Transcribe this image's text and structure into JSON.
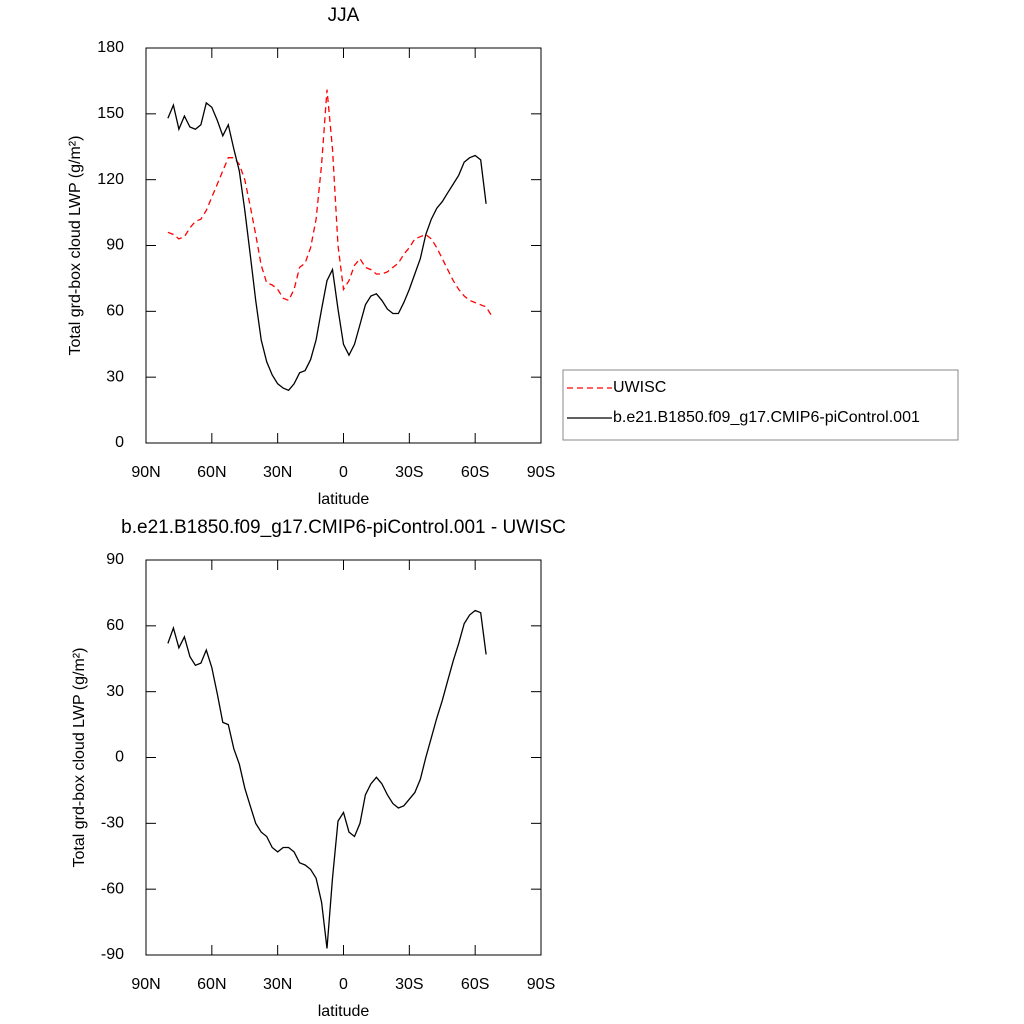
{
  "chart_data": [
    {
      "type": "line",
      "title": "JJA",
      "xlabel": "latitude",
      "ylabel": "Total grd-box cloud LWP (g/m²)",
      "x": [
        80,
        77.5,
        75,
        72.5,
        70,
        67.5,
        65,
        62.5,
        60,
        57.5,
        55,
        52.5,
        50,
        47.5,
        45,
        42.5,
        40,
        37.5,
        35,
        32.5,
        30,
        27.5,
        25,
        22.5,
        20,
        17.5,
        15,
        12.5,
        10,
        7.5,
        5,
        2.5,
        0,
        -2.5,
        -5,
        -7.5,
        -10,
        -12.5,
        -15,
        -17.5,
        -20,
        -22.5,
        -25,
        -27.5,
        -30,
        -32.5,
        -35,
        -37.5,
        -40,
        -42.5,
        -45,
        -47.5,
        -50,
        -52.5,
        -55,
        -57.5,
        -60,
        -62.5,
        -65,
        -67.5
      ],
      "xlim": [
        90,
        -90
      ],
      "xticks": [
        {
          "value": 90,
          "label": "90N"
        },
        {
          "value": 60,
          "label": "60N"
        },
        {
          "value": 30,
          "label": "30N"
        },
        0,
        {
          "value": -30,
          "label": "30S"
        },
        {
          "value": -60,
          "label": "60S"
        },
        {
          "value": -90,
          "label": "90S"
        }
      ],
      "ylim": [
        0,
        180
      ],
      "yticks": [
        0,
        30,
        60,
        90,
        120,
        150,
        180
      ],
      "legend": "right",
      "series": [
        {
          "name": "UWISC",
          "color": "#ff0000",
          "line_style": "dashed",
          "values": [
            96,
            95,
            93,
            94,
            98,
            101,
            102,
            106,
            112,
            118,
            124,
            130,
            130,
            127,
            120,
            108,
            95,
            81,
            73,
            72,
            70,
            66,
            65,
            70,
            80,
            82,
            89,
            102,
            127,
            161,
            134,
            90,
            70,
            74,
            81,
            84,
            80,
            79,
            77,
            77,
            78,
            80,
            82,
            86,
            89,
            93,
            94,
            95,
            93,
            89,
            84,
            79,
            74,
            70,
            67,
            65,
            64,
            63,
            62,
            58
          ]
        },
        {
          "name": "b.e21.B1850.f09_g17.CMIP6-piControl.001",
          "color": "#000000",
          "line_style": "solid",
          "values": [
            148,
            154,
            143,
            149,
            144,
            143,
            145,
            155,
            153,
            147,
            140,
            145,
            134,
            124,
            106,
            86,
            65,
            47,
            37,
            31,
            27,
            25,
            24,
            27,
            32,
            33,
            38,
            47,
            61,
            74,
            79,
            61,
            45,
            40,
            45,
            54,
            63,
            67,
            68,
            65,
            61,
            59,
            59,
            64,
            70,
            77,
            84,
            95,
            102,
            107,
            110,
            114,
            118,
            122,
            128,
            130,
            131,
            129,
            109,
            null
          ]
        }
      ]
    },
    {
      "type": "line",
      "title": "b.e21.B1850.f09_g17.CMIP6-piControl.001 - UWISC",
      "xlabel": "latitude",
      "ylabel": "Total grd-box cloud LWP (g/m²)",
      "x": [
        80,
        77.5,
        75,
        72.5,
        70,
        67.5,
        65,
        62.5,
        60,
        57.5,
        55,
        52.5,
        50,
        47.5,
        45,
        42.5,
        40,
        37.5,
        35,
        32.5,
        30,
        27.5,
        25,
        22.5,
        20,
        17.5,
        15,
        12.5,
        10,
        7.5,
        5,
        2.5,
        0,
        -2.5,
        -5,
        -7.5,
        -10,
        -12.5,
        -15,
        -17.5,
        -20,
        -22.5,
        -25,
        -27.5,
        -30,
        -32.5,
        -35,
        -37.5,
        -40,
        -42.5,
        -45,
        -47.5,
        -50,
        -52.5,
        -55,
        -57.5,
        -60,
        -62.5,
        -65,
        -67.5
      ],
      "xlim": [
        90,
        -90
      ],
      "xticks": [
        {
          "value": 90,
          "label": "90N"
        },
        {
          "value": 60,
          "label": "60N"
        },
        {
          "value": 30,
          "label": "30N"
        },
        0,
        {
          "value": -30,
          "label": "30S"
        },
        {
          "value": -60,
          "label": "60S"
        },
        {
          "value": -90,
          "label": "90S"
        }
      ],
      "ylim": [
        -90,
        90
      ],
      "yticks": [
        -90,
        -60,
        -30,
        0,
        30,
        60,
        90
      ],
      "color": "#000000",
      "values": [
        52,
        59,
        50,
        55,
        46,
        42,
        43,
        49,
        41,
        29,
        16,
        15,
        4,
        -3,
        -14,
        -22,
        -30,
        -34,
        -36,
        -41,
        -43,
        -41,
        -41,
        -43,
        -48,
        -49,
        -51,
        -55,
        -66,
        -87,
        -55,
        -29,
        -25,
        -34,
        -36,
        -30,
        -17,
        -12,
        -9,
        -12,
        -17,
        -21,
        -23,
        -22,
        -19,
        -16,
        -10,
        0,
        9,
        18,
        26,
        35,
        44,
        52,
        61,
        65,
        67,
        66,
        47,
        null
      ]
    }
  ]
}
